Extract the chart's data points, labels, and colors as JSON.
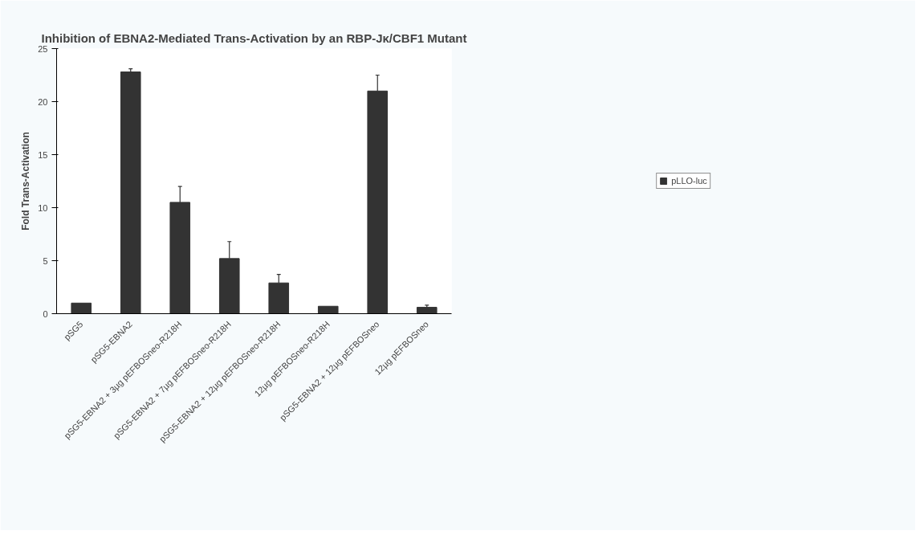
{
  "chart_data": {
    "type": "bar",
    "title": "Inhibition of EBNA2-Mediated Trans-Activation by an RBP-Jκ/CBF1 Mutant",
    "ylabel": "Fold Trans-Activation",
    "categories": [
      "pSG5",
      "pSG5-EBNA2",
      "pSG5-EBNA2 + 3µg pEFBOSneo-R218H",
      "pSG5-EBNA2 + 7µg pEFBOSneo-R218H",
      "pSG5-EBNA2 + 12µg pEFBOSneo-R218H",
      "12µg pEFBOSneo-R218H",
      "pSG5-EBNA2 + 12µg pEFBOSneo",
      "12µg pEFBOSneo"
    ],
    "series": [
      {
        "name": "pLLO-luc",
        "color": "#333333",
        "values": [
          1.0,
          22.8,
          10.5,
          5.2,
          2.9,
          0.7,
          21.0,
          0.6
        ],
        "errors": [
          null,
          0.3,
          1.5,
          1.6,
          0.8,
          null,
          1.5,
          0.2
        ]
      }
    ],
    "ylim": [
      0,
      25
    ],
    "yticks": [
      0,
      5,
      10,
      15,
      20,
      25
    ],
    "grid": false,
    "legend": "right"
  }
}
